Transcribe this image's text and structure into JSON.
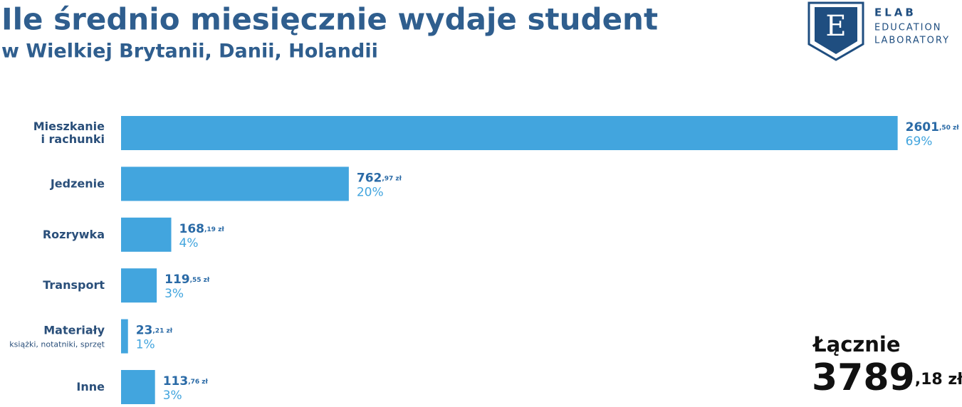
{
  "chart_data": {
    "type": "hbar",
    "title": "Ile średnio miesięcznie wydaje student",
    "subtitle": "w Wielkiej Brytanii, Danii, Holandii",
    "categories": [
      "Mieszkanie\ni rachunki",
      "Jedzenie",
      "Rozrywka",
      "Transport",
      "Materiały",
      "Inne"
    ],
    "category_notes": [
      null,
      null,
      null,
      null,
      "książki, notatniki, sprzęt",
      null
    ],
    "values": [
      2601.5,
      762.97,
      168.19,
      119.55,
      23.21,
      113.76
    ],
    "value_labels": [
      "2601,50 zł",
      "762,97 zł",
      "168,19 zł",
      "119,55 zł",
      "23,21 zł",
      "113,76 zł"
    ],
    "share_labels": [
      "69%",
      "20%",
      "4%",
      "3%",
      "1%",
      "3%"
    ],
    "color": "#42a5de",
    "xlim": [
      0,
      2600
    ],
    "total_label": "Łącznie",
    "total_value_label": "3789,18 zł",
    "logo": {
      "letter": "E",
      "lines": [
        "ELAB",
        "EDUCATION",
        "LABORATORY"
      ]
    }
  }
}
